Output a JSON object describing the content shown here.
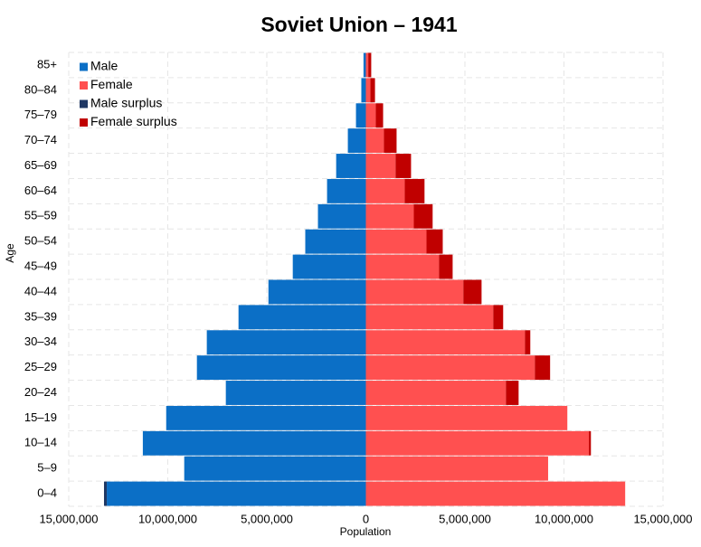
{
  "chart_data": {
    "type": "population-pyramid",
    "title": "Soviet Union – 1941",
    "x_label": "Population",
    "y_label": "Age",
    "categories": [
      "0–4",
      "5–9",
      "10–14",
      "15–19",
      "20–24",
      "25–29",
      "30–34",
      "35–39",
      "40–44",
      "45–49",
      "50–54",
      "55–59",
      "60–64",
      "65–69",
      "70–74",
      "75–79",
      "80–84",
      "85+"
    ],
    "series": [
      {
        "name": "Male",
        "color": "#0b6fc6",
        "values": [
          13080000,
          9170000,
          11260000,
          10080000,
          7070000,
          8530000,
          8030000,
          6430000,
          4920000,
          3690000,
          3060000,
          2420000,
          1960000,
          1500000,
          910000,
          500000,
          230000,
          120000
        ]
      },
      {
        "name": "Female",
        "color": "#ff5050",
        "values": [
          13090000,
          9200000,
          11260000,
          10170000,
          7070000,
          8530000,
          8030000,
          6430000,
          4920000,
          3690000,
          3060000,
          2420000,
          1960000,
          1500000,
          910000,
          500000,
          230000,
          120000
        ]
      },
      {
        "name": "Male surplus",
        "color": "#1f3864",
        "values": [
          140000,
          null,
          null,
          null,
          null,
          null,
          null,
          null,
          null,
          null,
          null,
          null,
          null,
          null,
          null,
          null,
          null,
          null
        ]
      },
      {
        "name": "Female surplus",
        "color": "#c00000",
        "values": [
          null,
          null,
          100000,
          null,
          640000,
          770000,
          270000,
          500000,
          920000,
          690000,
          820000,
          950000,
          1000000,
          780000,
          640000,
          370000,
          230000,
          150000
        ]
      }
    ],
    "xlim": [
      -15000000,
      15000000
    ],
    "xticks": [
      {
        "value": -15000000,
        "label": "15,000,000"
      },
      {
        "value": -10000000,
        "label": "10,000,000"
      },
      {
        "value": -5000000,
        "label": "5,000,000"
      },
      0,
      {
        "value": 5000000,
        "label": "5,000,000"
      },
      {
        "value": 10000000,
        "label": "10,000,000"
      },
      {
        "value": 15000000,
        "label": "15,000,000"
      }
    ],
    "grid": true,
    "legend": "top-left"
  }
}
